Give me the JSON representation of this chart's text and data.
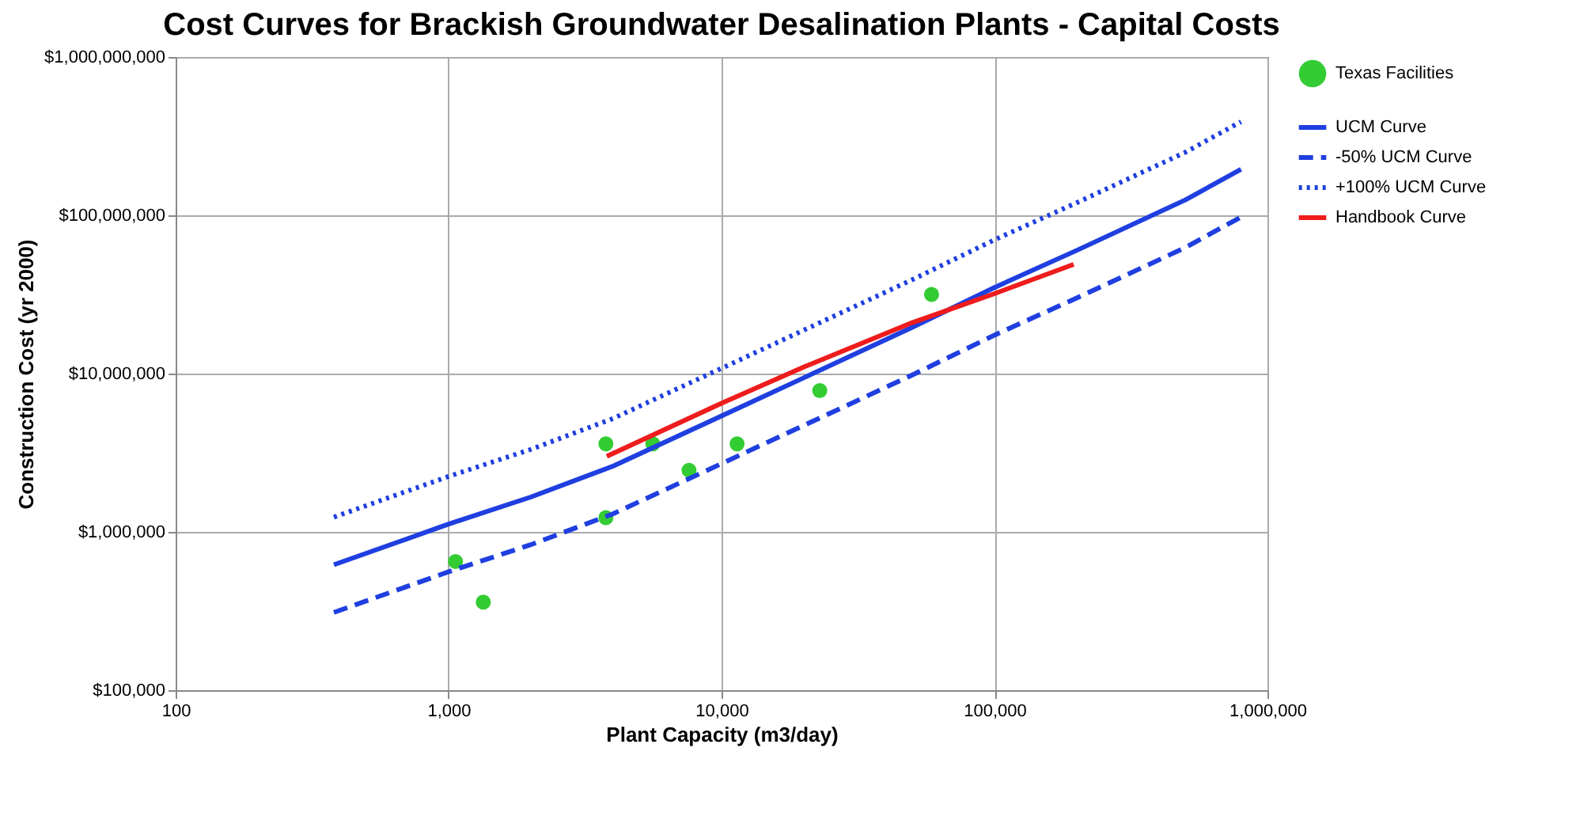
{
  "chart_data": {
    "type": "line",
    "title": "Cost Curves for Brackish Groundwater Desalination Plants - Capital Costs",
    "xlabel": "Plant Capacity (m3/day)",
    "ylabel": "Construction Cost (yr 2000)",
    "log": "xy",
    "grid": true,
    "legend": "right",
    "xlim": [
      100,
      1000000
    ],
    "xticks": [
      {
        "value": 100,
        "label": "100"
      },
      {
        "value": 1000,
        "label": "1,000"
      },
      {
        "value": 10000,
        "label": "10,000"
      },
      {
        "value": 100000,
        "label": "100,000"
      },
      {
        "value": 1000000,
        "label": "1,000,000"
      }
    ],
    "ylim": [
      100000,
      1000000000
    ],
    "yticks": [
      {
        "value": 100000,
        "label": "$100,000"
      },
      {
        "value": 1000000,
        "label": "$1,000,000"
      },
      {
        "value": 10000000,
        "label": "$10,000,000"
      },
      {
        "value": 100000000,
        "label": "$100,000,000"
      },
      {
        "value": 1000000000,
        "label": "$1,000,000,000"
      }
    ],
    "series": [
      {
        "name": "Texas Facilities",
        "type": "scatter",
        "marker": "circle",
        "color": "#33cc33",
        "x": [
          1060,
          1340,
          3770,
          3770,
          5600,
          7600,
          11400,
          22900,
          58800
        ],
        "values": [
          650000,
          360000,
          3600000,
          1230000,
          3600000,
          2450000,
          3600000,
          7800000,
          31600000
        ]
      },
      {
        "name": "UCM Curve",
        "line_style": "solid",
        "color": "#1f3fe0",
        "x": [
          380,
          1000,
          2000,
          4000,
          10000,
          20000,
          50000,
          100000,
          200000,
          500000,
          800000
        ],
        "values": [
          620000,
          1120000,
          1660000,
          2600000,
          5400000,
          9400000,
          19600000,
          35000000,
          60000000,
          125000000,
          195000000
        ]
      },
      {
        "name": "-50% UCM Curve",
        "line_style": "dashed",
        "color": "#1f3fe0",
        "x": [
          380,
          1000,
          2000,
          4000,
          10000,
          20000,
          50000,
          100000,
          200000,
          500000,
          800000
        ],
        "values": [
          310000,
          560000,
          830000,
          1300000,
          2700000,
          4700000,
          9800000,
          17500000,
          30000000,
          62500000,
          97500000
        ]
      },
      {
        "name": "+100% UCM Curve",
        "line_style": "dotted",
        "color": "#1f3fe0",
        "x": [
          380,
          1000,
          2000,
          4000,
          10000,
          20000,
          50000,
          100000,
          200000,
          500000,
          800000
        ],
        "values": [
          1240000,
          2240000,
          3320000,
          5200000,
          10800000,
          18800000,
          39200000,
          70000000,
          120000000,
          250000000,
          390000000
        ]
      },
      {
        "name": "Handbook Curve",
        "line_style": "solid",
        "color": "#ee1c1c",
        "x": [
          3800,
          10000,
          20000,
          50000,
          100000,
          195000
        ],
        "values": [
          3000000,
          6500000,
          11000000,
          21000000,
          32000000,
          49000000
        ]
      }
    ]
  }
}
